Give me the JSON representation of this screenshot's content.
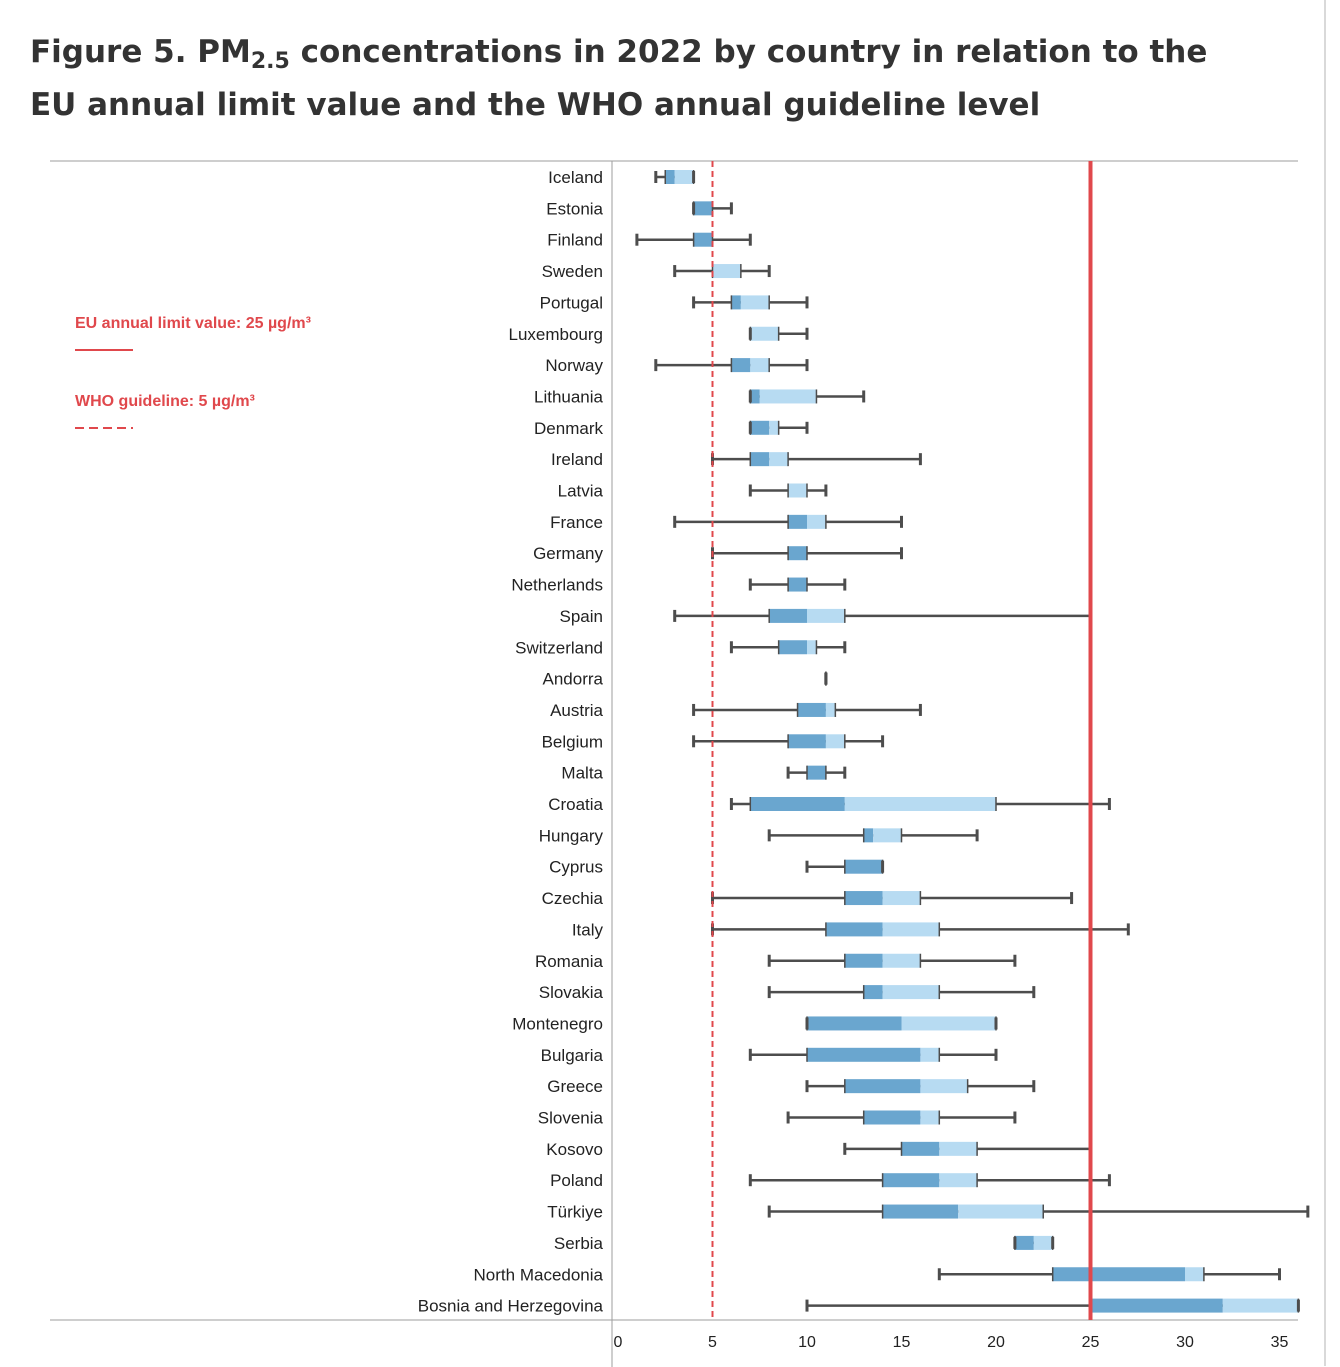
{
  "title_prefix": "Figure 5. PM",
  "title_sub": "2.5",
  "title_suffix": " concentrations in 2022 by country in relation to the EU annual limit value and the WHO annual guideline level",
  "legend": [
    {
      "label": "EU annual limit value: 25 µg/m³",
      "style": "solid",
      "color": "#e0484c"
    },
    {
      "label": "WHO guideline: 5 µg/m³",
      "style": "dashed",
      "color": "#e0484c"
    }
  ],
  "colors": {
    "q1_box": "#6aa6cf",
    "q3_box": "#b7dbf2",
    "whisker": "#4d4d4d",
    "reference": "#e0484c"
  },
  "chart_data": {
    "type": "box",
    "xlim": [
      0,
      36.5
    ],
    "x_ticks": [
      0,
      5,
      10,
      15,
      20,
      25,
      30,
      35
    ],
    "reference_lines": [
      {
        "name": "EU annual limit value",
        "value": 25,
        "style": "solid"
      },
      {
        "name": "WHO guideline",
        "value": 5,
        "style": "dashed"
      }
    ],
    "categories": [
      "Iceland",
      "Estonia",
      "Finland",
      "Sweden",
      "Portugal",
      "Luxembourg",
      "Norway",
      "Lithuania",
      "Denmark",
      "Ireland",
      "Latvia",
      "France",
      "Germany",
      "Netherlands",
      "Spain",
      "Switzerland",
      "Andorra",
      "Austria",
      "Belgium",
      "Malta",
      "Croatia",
      "Hungary",
      "Cyprus",
      "Czechia",
      "Italy",
      "Romania",
      "Slovakia",
      "Montenegro",
      "Bulgaria",
      "Greece",
      "Slovenia",
      "Kosovo",
      "Poland",
      "Türkiye",
      "Serbia",
      "North Macedonia",
      "Bosnia and Herzegovina"
    ],
    "boxes": [
      {
        "min": 2,
        "q1": 2.5,
        "median": 3,
        "q3": 4,
        "max": 4
      },
      {
        "min": 4,
        "q1": 4,
        "median": 5,
        "q3": 5,
        "max": 6
      },
      {
        "min": 1,
        "q1": 4,
        "median": 5,
        "q3": 5,
        "max": 7
      },
      {
        "min": 3,
        "q1": 5,
        "median": 5,
        "q3": 6.5,
        "max": 8
      },
      {
        "min": 4,
        "q1": 6,
        "median": 6.5,
        "q3": 8,
        "max": 10
      },
      {
        "min": 7,
        "q1": 7,
        "median": 7,
        "q3": 8.5,
        "max": 10
      },
      {
        "min": 2,
        "q1": 6,
        "median": 7,
        "q3": 8,
        "max": 10
      },
      {
        "min": 7,
        "q1": 7,
        "median": 7.5,
        "q3": 10.5,
        "max": 13
      },
      {
        "min": 7,
        "q1": 7,
        "median": 8,
        "q3": 8.5,
        "max": 10
      },
      {
        "min": 5,
        "q1": 7,
        "median": 8,
        "q3": 9,
        "max": 16
      },
      {
        "min": 7,
        "q1": 9,
        "median": 9,
        "q3": 10,
        "max": 11
      },
      {
        "min": 3,
        "q1": 9,
        "median": 10,
        "q3": 11,
        "max": 15
      },
      {
        "min": 5,
        "q1": 9,
        "median": 10,
        "q3": 10,
        "max": 15
      },
      {
        "min": 7,
        "q1": 9,
        "median": 10,
        "q3": 10,
        "max": 12
      },
      {
        "min": 3,
        "q1": 8,
        "median": 10,
        "q3": 12,
        "max": 25
      },
      {
        "min": 6,
        "q1": 8.5,
        "median": 10,
        "q3": 10.5,
        "max": 12
      },
      {
        "min": 11,
        "q1": 11,
        "median": 11,
        "q3": 11,
        "max": 11
      },
      {
        "min": 4,
        "q1": 9.5,
        "median": 11,
        "q3": 11.5,
        "max": 16
      },
      {
        "min": 4,
        "q1": 9,
        "median": 11,
        "q3": 12,
        "max": 14
      },
      {
        "min": 9,
        "q1": 10,
        "median": 11,
        "q3": 11,
        "max": 12
      },
      {
        "min": 6,
        "q1": 7,
        "median": 12,
        "q3": 20,
        "max": 26
      },
      {
        "min": 8,
        "q1": 13,
        "median": 13.5,
        "q3": 15,
        "max": 19
      },
      {
        "min": 10,
        "q1": 12,
        "median": 14,
        "q3": 14,
        "max": 14
      },
      {
        "min": 5,
        "q1": 12,
        "median": 14,
        "q3": 16,
        "max": 24
      },
      {
        "min": 5,
        "q1": 11,
        "median": 14,
        "q3": 17,
        "max": 27
      },
      {
        "min": 8,
        "q1": 12,
        "median": 14,
        "q3": 16,
        "max": 21
      },
      {
        "min": 8,
        "q1": 13,
        "median": 14,
        "q3": 17,
        "max": 22
      },
      {
        "min": 10,
        "q1": 10,
        "median": 15,
        "q3": 20,
        "max": 20
      },
      {
        "min": 7,
        "q1": 10,
        "median": 16,
        "q3": 17,
        "max": 20
      },
      {
        "min": 10,
        "q1": 12,
        "median": 16,
        "q3": 18.5,
        "max": 22
      },
      {
        "min": 9,
        "q1": 13,
        "median": 16,
        "q3": 17,
        "max": 21
      },
      {
        "min": 12,
        "q1": 15,
        "median": 17,
        "q3": 19,
        "max": 25
      },
      {
        "min": 7,
        "q1": 14,
        "median": 17,
        "q3": 19,
        "max": 26
      },
      {
        "min": 8,
        "q1": 14,
        "median": 18,
        "q3": 22.5,
        "max": 36.5
      },
      {
        "min": 21,
        "q1": 21,
        "median": 22,
        "q3": 23,
        "max": 23
      },
      {
        "min": 17,
        "q1": 23,
        "median": 30,
        "q3": 31,
        "max": 35
      },
      {
        "min": 10,
        "q1": 25,
        "median": 32,
        "q3": 36,
        "max": 36
      }
    ]
  }
}
